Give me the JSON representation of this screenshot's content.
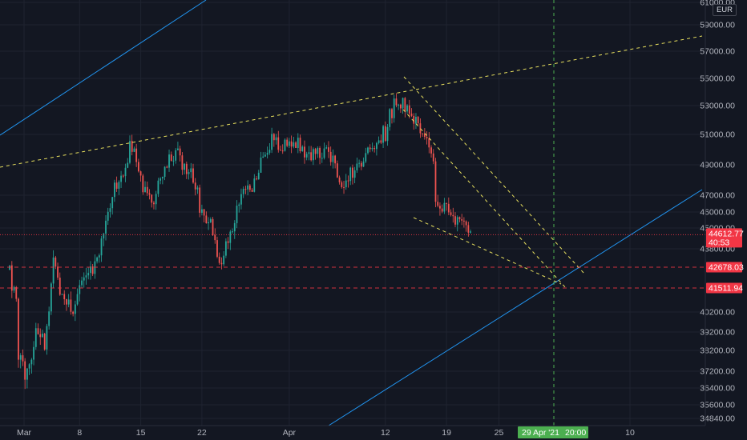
{
  "chart_data": {
    "type": "candlestick",
    "currency": "EUR",
    "y_axis": {
      "range": [
        34300,
        61300
      ],
      "tick_labels": [
        "61000.00",
        "59000.00",
        "57000.00",
        "55000.00",
        "53000.00",
        "51000.00",
        "49000.00",
        "47000.00",
        "46000.00",
        "45000.00",
        "43800.00",
        "40200.00",
        "39200.00",
        "38200.00",
        "37200.00",
        "36400.00",
        "35600.00",
        "34840.00"
      ]
    },
    "x_axis": {
      "tick_labels": [
        "Mar",
        "8",
        "15",
        "22",
        "Apr",
        "12",
        "19",
        "25",
        "10"
      ],
      "crosshair_date_label": "29 Apr '21",
      "crosshair_time_label": "20:00"
    },
    "price_tags": [
      {
        "label": "44612.77",
        "sublabel": "40:53",
        "value": 44612.77,
        "color": "#f23645"
      },
      {
        "label": "42678.03",
        "value": 42678.03,
        "color": "#f23645"
      },
      {
        "label": "41511.94",
        "value": 41511.94,
        "color": "#f23645"
      }
    ],
    "price_series": [
      {
        "date": "Feb 28",
        "value": 43500
      },
      {
        "date": "Mar 1",
        "value": 38500
      },
      {
        "date": "Mar 2",
        "value": 36200
      },
      {
        "date": "Mar 3",
        "value": 39500
      },
      {
        "date": "Mar 4",
        "value": 38900
      },
      {
        "date": "Mar 5",
        "value": 42800
      },
      {
        "date": "Mar 6",
        "value": 41000
      },
      {
        "date": "Mar 7",
        "value": 40200
      },
      {
        "date": "Mar 8",
        "value": 41500
      },
      {
        "date": "Mar 9",
        "value": 42300
      },
      {
        "date": "Mar 10",
        "value": 43600
      },
      {
        "date": "Mar 11",
        "value": 45500
      },
      {
        "date": "Mar 12",
        "value": 47300
      },
      {
        "date": "Mar 13",
        "value": 48500
      },
      {
        "date": "Mar 14",
        "value": 50400
      },
      {
        "date": "Mar 15",
        "value": 48200
      },
      {
        "date": "Mar 16",
        "value": 46600
      },
      {
        "date": "Mar 17",
        "value": 47700
      },
      {
        "date": "Mar 18",
        "value": 49200
      },
      {
        "date": "Mar 19",
        "value": 49800
      },
      {
        "date": "Mar 20",
        "value": 48800
      },
      {
        "date": "Mar 21",
        "value": 48200
      },
      {
        "date": "Mar 22",
        "value": 46200
      },
      {
        "date": "Mar 23",
        "value": 45000
      },
      {
        "date": "Mar 24",
        "value": 43100
      },
      {
        "date": "Mar 25",
        "value": 44500
      },
      {
        "date": "Mar 26",
        "value": 46000
      },
      {
        "date": "Mar 27",
        "value": 47200
      },
      {
        "date": "Mar 28",
        "value": 47800
      },
      {
        "date": "Mar 29",
        "value": 49800
      },
      {
        "date": "Mar 30",
        "value": 50600
      },
      {
        "date": "Mar 31",
        "value": 50100
      },
      {
        "date": "Apr 1",
        "value": 50400
      },
      {
        "date": "Apr 2",
        "value": 50300
      },
      {
        "date": "Apr 3",
        "value": 49500
      },
      {
        "date": "Apr 4",
        "value": 49700
      },
      {
        "date": "Apr 5",
        "value": 49900
      },
      {
        "date": "Apr 6",
        "value": 49000
      },
      {
        "date": "Apr 7",
        "value": 47300
      },
      {
        "date": "Apr 8",
        "value": 48400
      },
      {
        "date": "Apr 9",
        "value": 49000
      },
      {
        "date": "Apr 10",
        "value": 50100
      },
      {
        "date": "Apr 11",
        "value": 50500
      },
      {
        "date": "Apr 12",
        "value": 51200
      },
      {
        "date": "Apr 13",
        "value": 53300
      },
      {
        "date": "Apr 14",
        "value": 53200
      },
      {
        "date": "Apr 15",
        "value": 52500
      },
      {
        "date": "Apr 16",
        "value": 51200
      },
      {
        "date": "Apr 17",
        "value": 50800
      },
      {
        "date": "Apr 18",
        "value": 46500
      },
      {
        "date": "Apr 19",
        "value": 46200
      },
      {
        "date": "Apr 20",
        "value": 45500
      },
      {
        "date": "Apr 21",
        "value": 45800
      },
      {
        "date": "Apr 22",
        "value": 44612.77
      }
    ],
    "drawings": {
      "colors": {
        "trendline_yellow": "#e8e05e",
        "channel_blue": "#2196f3",
        "crosshair_green": "#4caf50",
        "level_red": "#f23645"
      }
    }
  }
}
